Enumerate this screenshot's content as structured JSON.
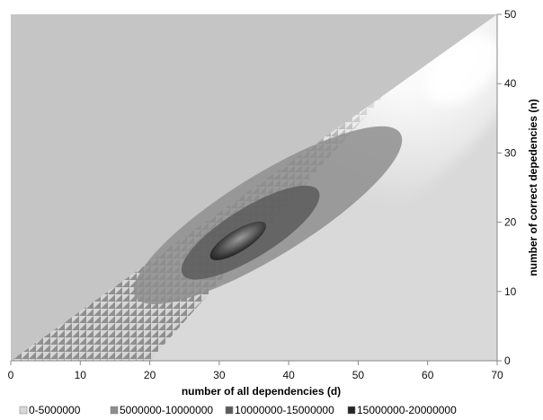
{
  "chart_data": {
    "type": "heatmap",
    "subtype": "contour",
    "title": "",
    "xlabel": "number of all dependencies (d)",
    "ylabel": "number of correct depedencies (n)",
    "xlim": [
      0,
      70
    ],
    "ylim": [
      0,
      50
    ],
    "x_ticks": [
      0,
      10,
      20,
      30,
      40,
      50,
      60,
      70
    ],
    "y_ticks": [
      0,
      10,
      20,
      30,
      40,
      50
    ],
    "y_axis_side": "right",
    "grid": false,
    "legend_position": "bottom",
    "legend": [
      {
        "label": "0-5000000",
        "range": [
          0,
          5000000
        ],
        "color": "#d8d8d8"
      },
      {
        "label": "5000000-10000000",
        "range": [
          5000000,
          10000000
        ],
        "color": "#8e8e8e"
      },
      {
        "label": "10000000-15000000",
        "range": [
          10000000,
          15000000
        ],
        "color": "#5c5c5c"
      },
      {
        "label": "15000000-20000000",
        "range": [
          15000000,
          20000000
        ],
        "color": "#262626"
      }
    ],
    "regions": [
      {
        "band": "5000000-10000000",
        "center": [
          37,
          21
        ],
        "extent_d": [
          15,
          56
        ],
        "extent_n": [
          7,
          35
        ]
      },
      {
        "band": "10000000-15000000",
        "center": [
          34.5,
          18.5
        ],
        "extent_d": [
          24,
          45
        ],
        "extent_n": [
          10,
          27
        ]
      },
      {
        "band": "15000000-20000000",
        "center": [
          32.7,
          17.3
        ],
        "extent_d": [
          28.5,
          37
        ],
        "extent_n": [
          14.5,
          20
        ]
      }
    ],
    "bright_ridge": {
      "from": [
        40,
        20
      ],
      "to": [
        68,
        44
      ]
    },
    "valid_domain": "n <= d"
  }
}
